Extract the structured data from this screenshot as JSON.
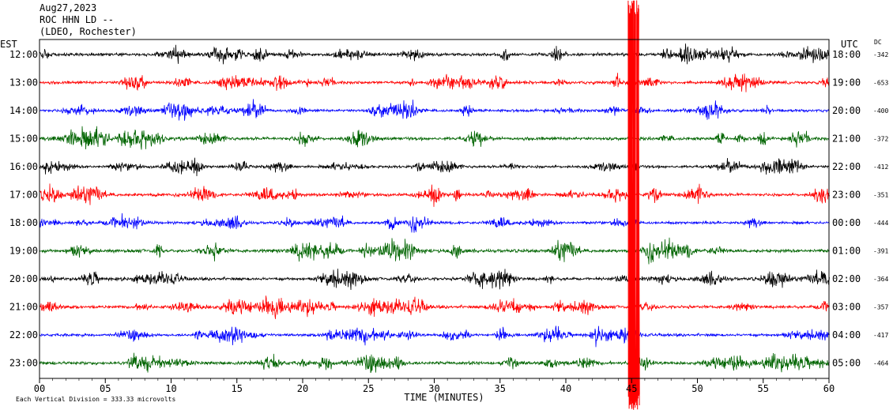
{
  "header": {
    "date": "Aug27,2023",
    "station": "ROC HHN LD --",
    "network": "(LDEO, Rochester)"
  },
  "chart_data": {
    "type": "line",
    "title": "",
    "left_axis_label": "EST",
    "right_axis_label": "UTC",
    "dc_label": "DC",
    "xlabel": "TIME (MINUTES)",
    "xlim": [
      0,
      60
    ],
    "x_ticks": [
      "00",
      "05",
      "10",
      "15",
      "20",
      "25",
      "30",
      "35",
      "40",
      "45",
      "50",
      "55",
      "60"
    ],
    "scale_note": "Each Vertical Division = 333.33 microvolts",
    "line_colors": [
      "#000000",
      "#ff0000",
      "#0000ff",
      "#006400"
    ],
    "rows": [
      {
        "est": "12:00",
        "utc": "18:00",
        "dc": "-342",
        "color": "#000000",
        "amplitude": 0.55
      },
      {
        "est": "13:00",
        "utc": "19:00",
        "dc": "-653",
        "color": "#ff0000",
        "amplitude": 0.55
      },
      {
        "est": "14:00",
        "utc": "20:00",
        "dc": "-400",
        "color": "#0000ff",
        "amplitude": 0.5
      },
      {
        "est": "15:00",
        "utc": "21:00",
        "dc": "-372",
        "color": "#006400",
        "amplitude": 0.6
      },
      {
        "est": "16:00",
        "utc": "22:00",
        "dc": "-412",
        "color": "#000000",
        "amplitude": 0.5
      },
      {
        "est": "17:00",
        "utc": "23:00",
        "dc": "-351",
        "color": "#ff0000",
        "amplitude": 0.55
      },
      {
        "est": "18:00",
        "utc": "00:00",
        "dc": "-444",
        "color": "#0000ff",
        "amplitude": 0.5
      },
      {
        "est": "19:00",
        "utc": "01:00",
        "dc": "-391",
        "color": "#006400",
        "amplitude": 0.6
      },
      {
        "est": "20:00",
        "utc": "02:00",
        "dc": "-364",
        "color": "#000000",
        "amplitude": 0.55
      },
      {
        "est": "21:00",
        "utc": "03:00",
        "dc": "-357",
        "color": "#ff0000",
        "amplitude": 0.55
      },
      {
        "est": "22:00",
        "utc": "04:00",
        "dc": "-417",
        "color": "#0000ff",
        "amplitude": 0.5
      },
      {
        "est": "23:00",
        "utc": "05:00",
        "dc": "-464",
        "color": "#006400",
        "amplitude": 0.6
      }
    ],
    "event": {
      "minute": 45.1
    }
  }
}
